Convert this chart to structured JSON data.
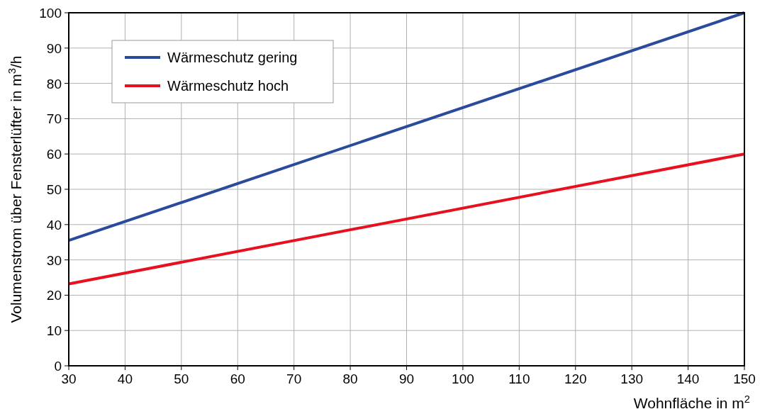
{
  "chart_data": {
    "type": "line",
    "xlabel": "Wohnfläche in m$^{2}$",
    "ylabel": "Volumenstrom über Fensterlüfter in m$^{3}$/h",
    "xlim": [
      30,
      150
    ],
    "xticks": [
      30,
      40,
      50,
      60,
      70,
      80,
      90,
      100,
      110,
      120,
      130,
      140,
      150
    ],
    "ylim": [
      0,
      100
    ],
    "yticks": [
      0,
      10,
      20,
      30,
      40,
      50,
      60,
      70,
      80,
      90,
      100
    ],
    "x": [
      30,
      150
    ],
    "grid": true,
    "legend": "top left",
    "line_style": "solid",
    "marker": "none",
    "series": [
      {
        "name": "Wärmeschutz gering",
        "color": "#2a4a9c",
        "values": [
          35.5,
          100
        ]
      },
      {
        "name": "Wärmeschutz hoch",
        "color": "#e8101e",
        "values": [
          23.2,
          60
        ]
      }
    ]
  }
}
